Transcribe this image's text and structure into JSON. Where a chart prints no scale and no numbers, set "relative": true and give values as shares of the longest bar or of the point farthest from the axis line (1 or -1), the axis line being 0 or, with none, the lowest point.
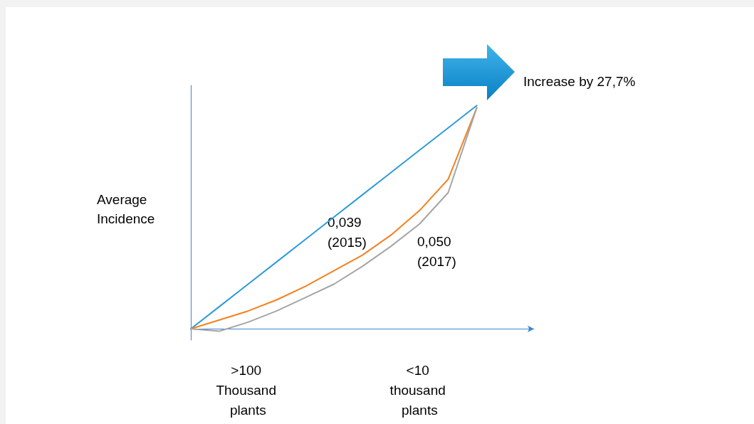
{
  "chart_data": {
    "type": "line",
    "relative": true,
    "marker": "none",
    "ylabel": "Average Incidence",
    "categories": [
      null,
      null,
      ">100 Thousand plants",
      null,
      null,
      null,
      null,
      null,
      "<10 thousand plants",
      null,
      null,
      null,
      null
    ],
    "series": [
      {
        "color": "#2e9bd6",
        "values": [
          0,
          0.1,
          0.2,
          0.3,
          0.4,
          0.5,
          0.6,
          0.7,
          0.8,
          0.9,
          1,
          null,
          null
        ]
      },
      {
        "color": "#f4801f",
        "values": [
          0,
          0.04,
          0.08,
          0.13,
          0.19,
          0.26,
          0.33,
          0.42,
          0.53,
          0.67,
          0.99,
          null,
          null
        ]
      },
      {
        "color": "#a5a5a5",
        "values": [
          0,
          -0.01,
          0.03,
          0.08,
          0.14,
          0.2,
          0.28,
          0.37,
          0.47,
          0.61,
          0.99,
          null,
          null
        ]
      }
    ],
    "annotations": [
      "Increase by 27,7%",
      "0,039 (2015)",
      "0,050 (2017)"
    ]
  }
}
